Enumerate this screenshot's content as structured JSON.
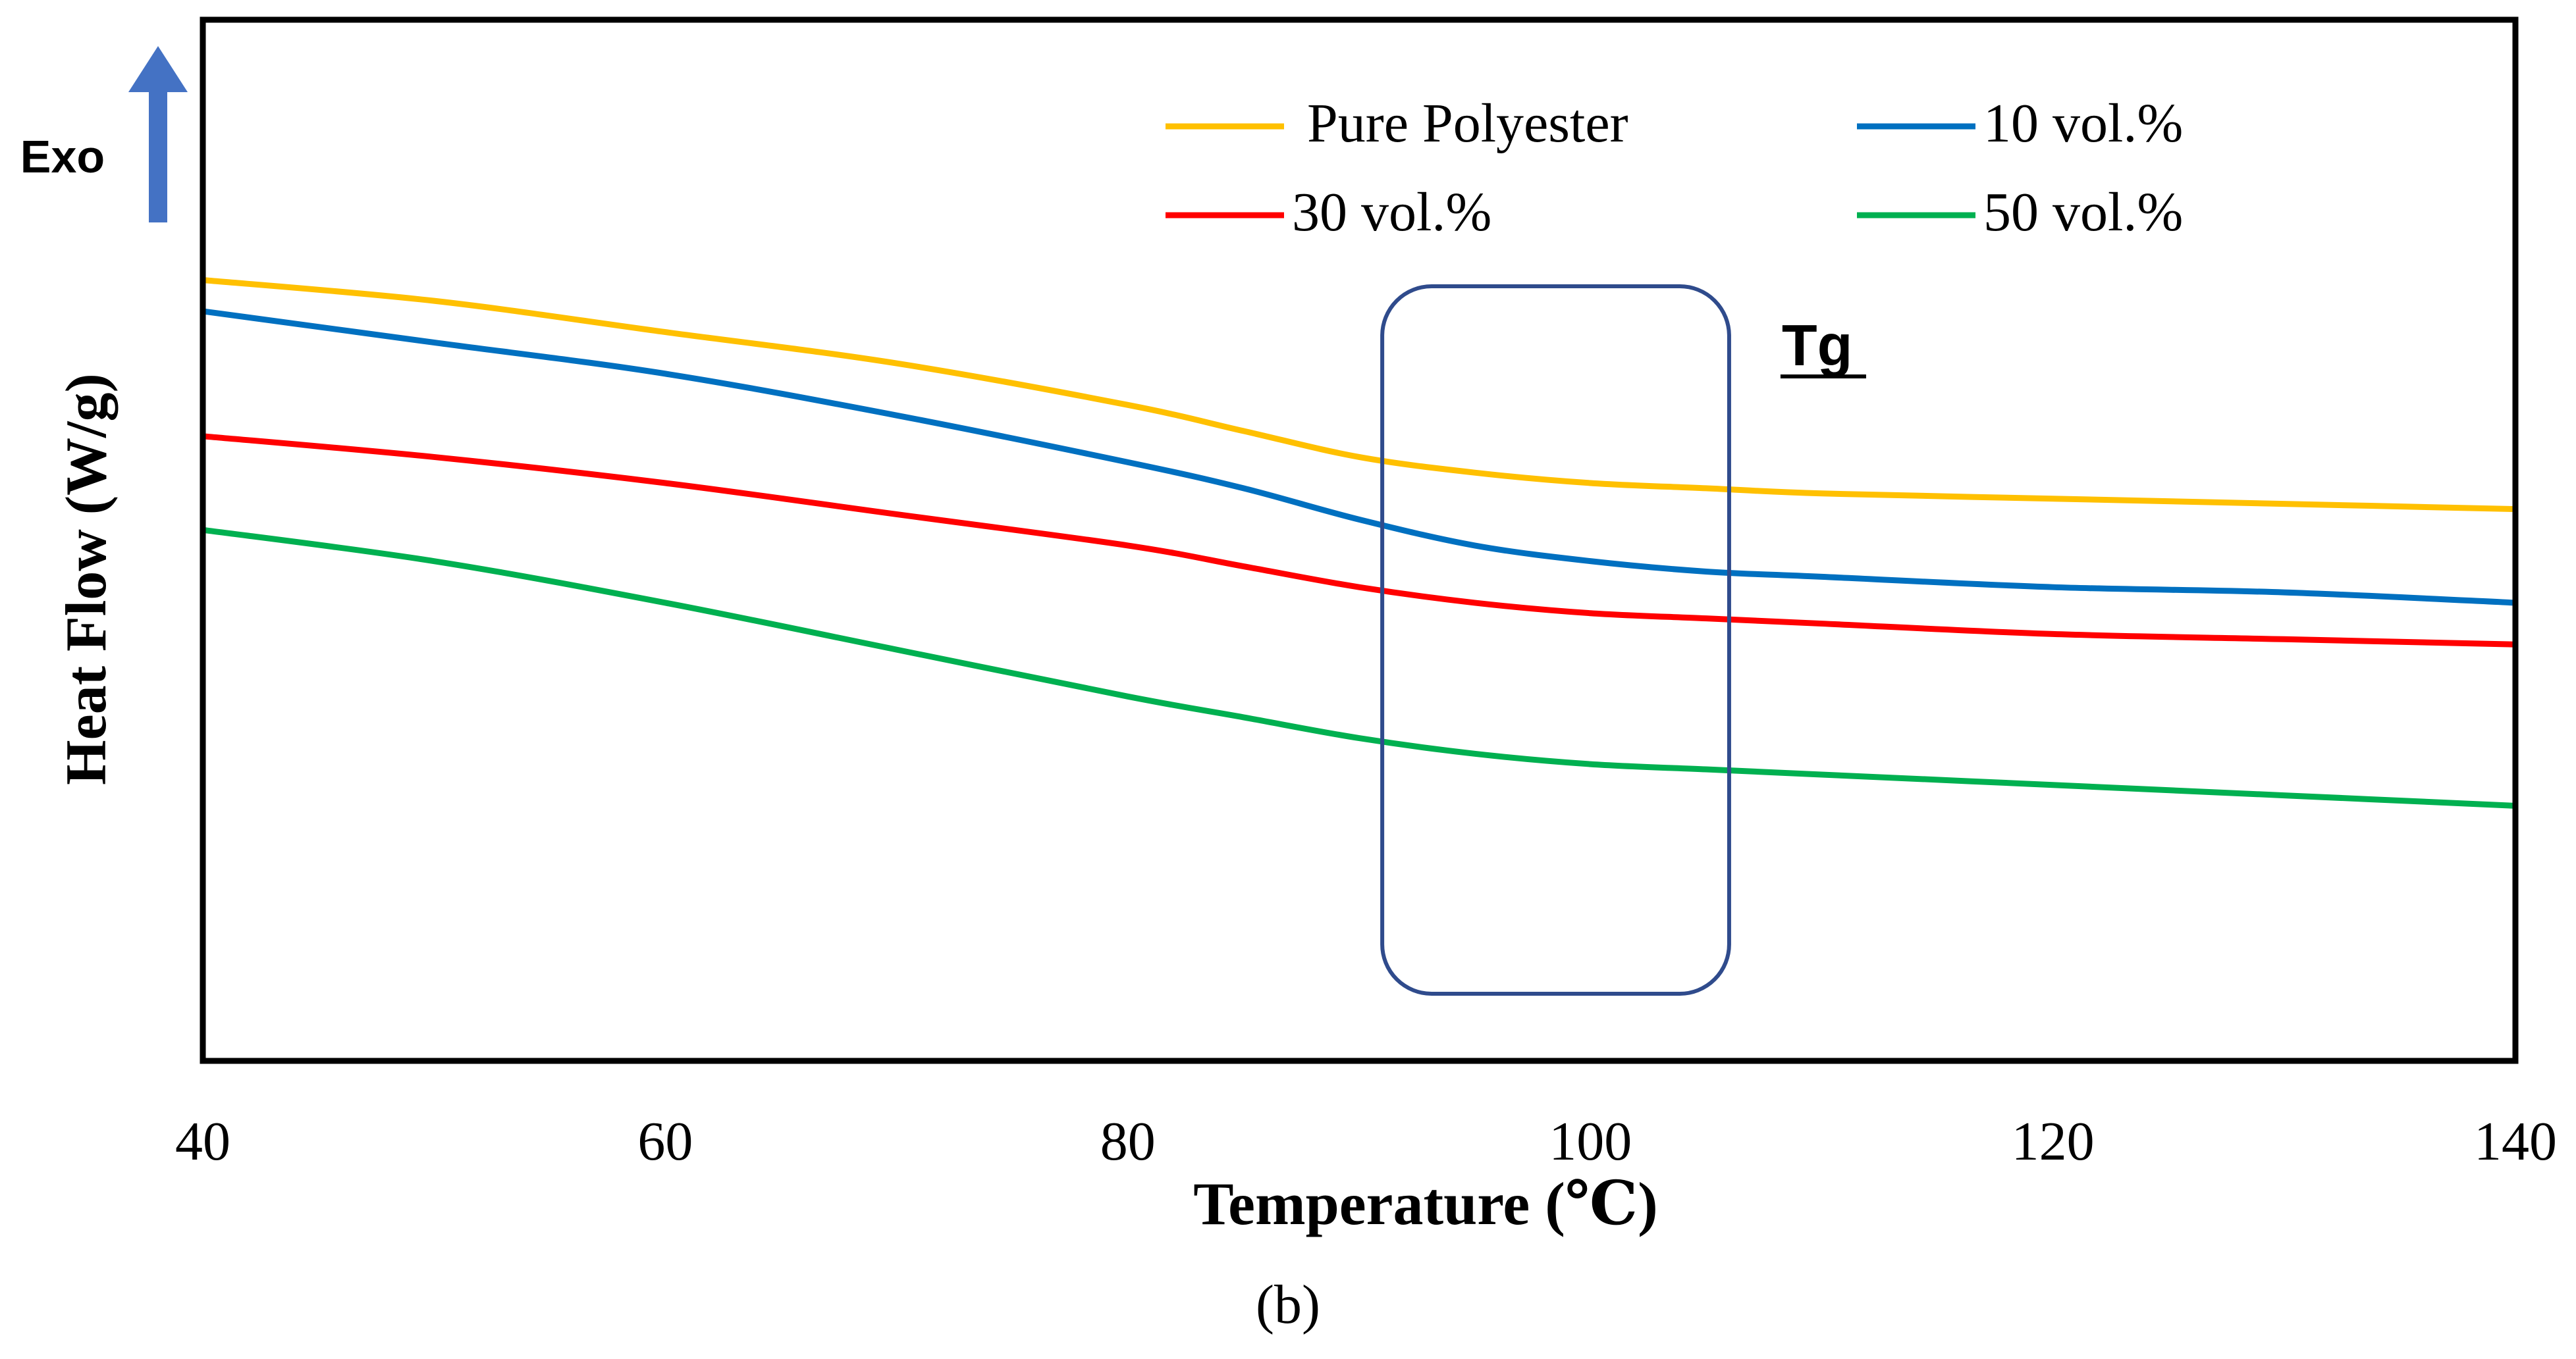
{
  "chart_data": {
    "type": "line",
    "xlabel": "Temperature (℃)",
    "ylabel": "Heat Flow (W/g)",
    "xlim": [
      40,
      140
    ],
    "x_ticks": [
      "40",
      "60",
      "80",
      "100",
      "120",
      "140"
    ],
    "y_ticks_shown": false,
    "grid": false,
    "legend_position": "top",
    "panel_label": "(b)",
    "indicator": {
      "label": "Exo",
      "direction": "up"
    },
    "annotation": {
      "label": "Tg",
      "x_range": [
        91,
        106
      ]
    },
    "series": [
      {
        "name": "Pure Polyester",
        "color": "#FFC000",
        "x": [
          40,
          50,
          60,
          70,
          80,
          85,
          90,
          95,
          100,
          105,
          110,
          120,
          130,
          140
        ],
        "y": [
          0.75,
          0.73,
          0.7,
          0.67,
          0.63,
          0.605,
          0.58,
          0.565,
          0.555,
          0.55,
          0.545,
          0.54,
          0.535,
          0.53
        ]
      },
      {
        "name": "10 vol.%",
        "color": "#0070C0",
        "x": [
          40,
          50,
          60,
          70,
          80,
          85,
          90,
          95,
          100,
          105,
          110,
          120,
          130,
          140
        ],
        "y": [
          0.72,
          0.69,
          0.66,
          0.62,
          0.575,
          0.55,
          0.52,
          0.495,
          0.48,
          0.47,
          0.465,
          0.455,
          0.45,
          0.44
        ]
      },
      {
        "name": "30 vol.%",
        "color": "#FF0000",
        "x": [
          40,
          50,
          60,
          70,
          80,
          85,
          90,
          95,
          100,
          105,
          110,
          120,
          130,
          140
        ],
        "y": [
          0.6,
          0.58,
          0.555,
          0.525,
          0.495,
          0.475,
          0.455,
          0.44,
          0.43,
          0.425,
          0.42,
          0.41,
          0.405,
          0.4
        ]
      },
      {
        "name": "50 vol.%",
        "color": "#00B050",
        "x": [
          40,
          50,
          60,
          70,
          80,
          85,
          90,
          95,
          100,
          105,
          110,
          120,
          130,
          140
        ],
        "y": [
          0.51,
          0.48,
          0.44,
          0.395,
          0.35,
          0.33,
          0.31,
          0.295,
          0.285,
          0.28,
          0.275,
          0.265,
          0.255,
          0.245
        ]
      }
    ]
  }
}
